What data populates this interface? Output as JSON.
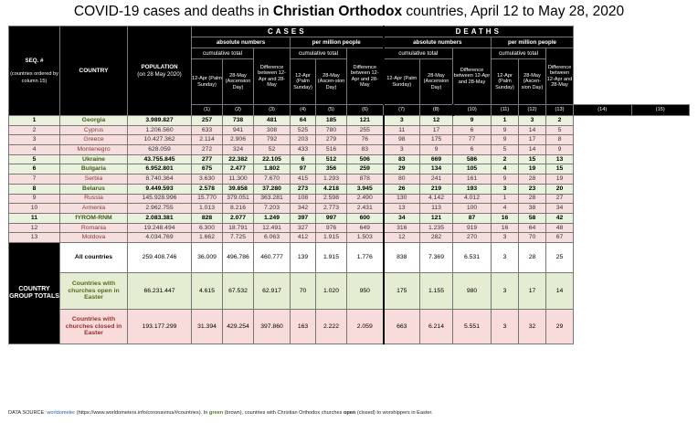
{
  "title": {
    "prefix": "COVID-19 cases and deaths in ",
    "bold": "Christian Orthodox",
    "suffix": " countries, April 12 to May 28, 2020"
  },
  "header": {
    "seq": "SEQ. #",
    "seq_note": "(countries ordered by column 15)",
    "country": "COUNTRY",
    "population": "POPULATION",
    "population_note": "(on 28 May 2020)",
    "cases": "CASES",
    "deaths": "DEATHS",
    "absolute": "absolute numbers",
    "per_million": "per million people",
    "cumulative": "cumulative total",
    "difference": "Difference between 12-Apr and 28-May",
    "apr12": "12-Apr (Palm Sunday)",
    "may28": "28-May (Ascension Day)",
    "apr12_short": "12-Apr (Palm Sunday)",
    "may28_short": "28-May (Ascen-sion Day)",
    "col_nums": [
      "(1)",
      "(2)",
      "(3)",
      "(4)",
      "(5)",
      "(6)",
      "(7)",
      "(8)",
      "(10)",
      "(11)",
      "(12)",
      "(13)",
      "(14)",
      "(15)"
    ]
  },
  "rows": [
    {
      "seq": "1",
      "country": "Georgia",
      "pop": "3.989.827",
      "c": [
        "257",
        "738",
        "481",
        "64",
        "185",
        "121",
        "3",
        "12",
        "9",
        "1",
        "3",
        "2"
      ],
      "type": "green"
    },
    {
      "seq": "2",
      "country": "Cyprus",
      "pop": "1.206.560",
      "c": [
        "633",
        "941",
        "308",
        "525",
        "780",
        "255",
        "11",
        "17",
        "6",
        "9",
        "14",
        "5"
      ],
      "type": "red"
    },
    {
      "seq": "3",
      "country": "Greece",
      "pop": "10.427.362",
      "c": [
        "2.114",
        "2.906",
        "792",
        "203",
        "279",
        "76",
        "98",
        "175",
        "77",
        "9",
        "17",
        "8"
      ],
      "type": "red"
    },
    {
      "seq": "4",
      "country": "Montenegro",
      "pop": "628.059",
      "c": [
        "272",
        "324",
        "52",
        "433",
        "516",
        "83",
        "3",
        "9",
        "6",
        "5",
        "14",
        "9"
      ],
      "type": "red"
    },
    {
      "seq": "5",
      "country": "Ukraine",
      "pop": "43.755.845",
      "c": [
        "277",
        "22.382",
        "22.105",
        "6",
        "512",
        "506",
        "83",
        "669",
        "586",
        "2",
        "15",
        "13"
      ],
      "type": "green"
    },
    {
      "seq": "6",
      "country": "Bulgaria",
      "pop": "6.952.801",
      "c": [
        "675",
        "2.477",
        "1.802",
        "97",
        "356",
        "259",
        "29",
        "134",
        "105",
        "4",
        "19",
        "15"
      ],
      "type": "green"
    },
    {
      "seq": "7",
      "country": "Serbia",
      "pop": "8.740.364",
      "c": [
        "3.630",
        "11.300",
        "7.670",
        "415",
        "1.293",
        "878",
        "80",
        "241",
        "161",
        "9",
        "28",
        "19"
      ],
      "type": "red"
    },
    {
      "seq": "8",
      "country": "Belarus",
      "pop": "9.449.593",
      "c": [
        "2.578",
        "39.858",
        "37.280",
        "273",
        "4.218",
        "3.945",
        "26",
        "219",
        "193",
        "3",
        "23",
        "20"
      ],
      "type": "green"
    },
    {
      "seq": "9",
      "country": "Russia",
      "pop": "145.928.996",
      "c": [
        "15.770",
        "379.051",
        "363.281",
        "108",
        "2.598",
        "2.490",
        "130",
        "4.142",
        "4.012",
        "1",
        "28",
        "27"
      ],
      "type": "red"
    },
    {
      "seq": "10",
      "country": "Armenia",
      "pop": "2.962.755",
      "c": [
        "1.013",
        "8.216",
        "7.203",
        "342",
        "2.773",
        "2.431",
        "13",
        "113",
        "100",
        "4",
        "38",
        "34"
      ],
      "type": "red"
    },
    {
      "seq": "11",
      "country": "fYROM-RNM",
      "pop": "2.083.381",
      "c": [
        "828",
        "2.077",
        "1.249",
        "397",
        "997",
        "600",
        "34",
        "121",
        "87",
        "16",
        "58",
        "42"
      ],
      "type": "green"
    },
    {
      "seq": "12",
      "country": "Romania",
      "pop": "19.248.494",
      "c": [
        "6.300",
        "18.791",
        "12.491",
        "327",
        "976",
        "649",
        "316",
        "1.235",
        "919",
        "16",
        "64",
        "48"
      ],
      "type": "red"
    },
    {
      "seq": "13",
      "country": "Moldova",
      "pop": "4.034.769",
      "c": [
        "1.662",
        "7.725",
        "6.063",
        "412",
        "1.915",
        "1.503",
        "12",
        "282",
        "270",
        "3",
        "70",
        "67"
      ],
      "type": "red"
    }
  ],
  "group_label": "COUNTRY GROUP TOTALS",
  "totals": [
    {
      "label": "All countries",
      "pop": "259.408.746",
      "c": [
        "36.009",
        "496.786",
        "460.777",
        "139",
        "1.915",
        "1.776",
        "838",
        "7.369",
        "6.531",
        "3",
        "28",
        "25"
      ]
    },
    {
      "label": "Countries with churches open in Easter",
      "pop": "66.231.447",
      "c": [
        "4.615",
        "67.532",
        "62.917",
        "70",
        "1.020",
        "950",
        "175",
        "1.155",
        "980",
        "3",
        "17",
        "14"
      ]
    },
    {
      "label": "Countries with churches closed in Easter",
      "pop": "193.177.299",
      "c": [
        "31.394",
        "429.254",
        "397.860",
        "163",
        "2.222",
        "2.059",
        "663",
        "6.214",
        "5.551",
        "3",
        "32",
        "29"
      ]
    }
  ],
  "footer": {
    "source_label": "DATA SOURCE: ",
    "source_link": "worldometer",
    "source_url_text": " (https://www.worldometers.info/coronavirus/#countries).",
    "note_pre": "   In ",
    "note_green": "green",
    "note_mid": " (brown), countries with Christian Orthodox churches ",
    "note_open": "open",
    "note_post": " (closed) to worshippers in Easter."
  },
  "colors": {
    "header_bg": "#000000",
    "green_row": "#eaf1dd",
    "red_row": "#f6dede"
  }
}
